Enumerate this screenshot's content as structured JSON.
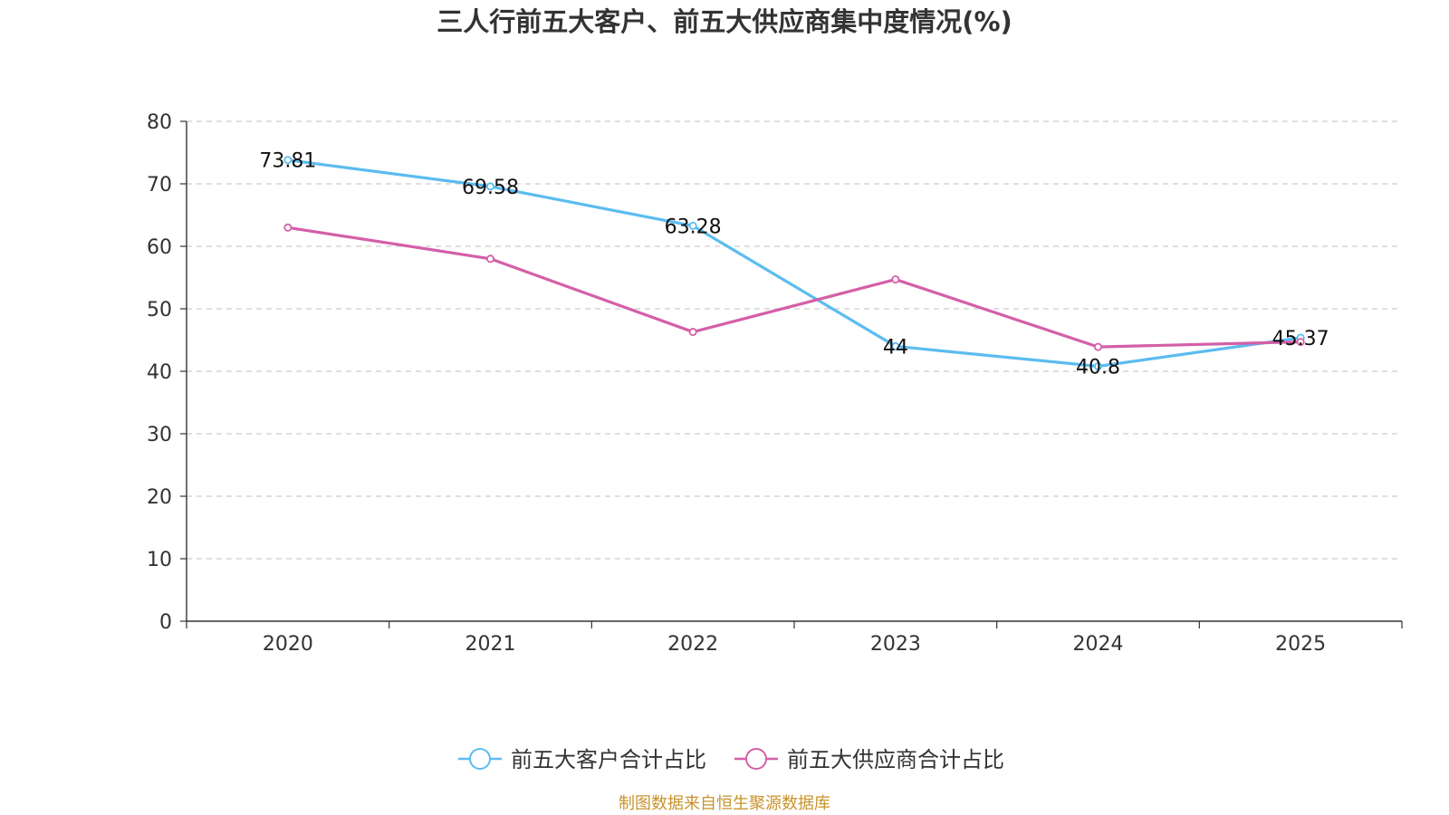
{
  "chart_data": {
    "type": "line",
    "title": "三人行前五大客户、前五大供应商集中度情况(%)",
    "categories": [
      "2020",
      "2021",
      "2022",
      "2023",
      "2024",
      "2025"
    ],
    "ylim": [
      0,
      80
    ],
    "yticks": [
      0,
      10,
      20,
      30,
      40,
      50,
      60,
      70,
      80
    ],
    "grid": true,
    "legend_position": "bottom-center",
    "series": [
      {
        "name": "前五大客户合计占比",
        "color": "#5bbcf0",
        "values": [
          73.81,
          69.58,
          63.28,
          44,
          40.8,
          45.37
        ],
        "labels": [
          "73.81",
          "69.58",
          "63.28",
          "44",
          "40.8",
          "45.37"
        ]
      },
      {
        "name": "前五大供应商合计占比",
        "color": "#d45fa8",
        "values": [
          63.0,
          58.0,
          46.3,
          54.7,
          43.9,
          44.7
        ],
        "labels": []
      }
    ],
    "source": "制图数据来自恒生聚源数据库"
  }
}
